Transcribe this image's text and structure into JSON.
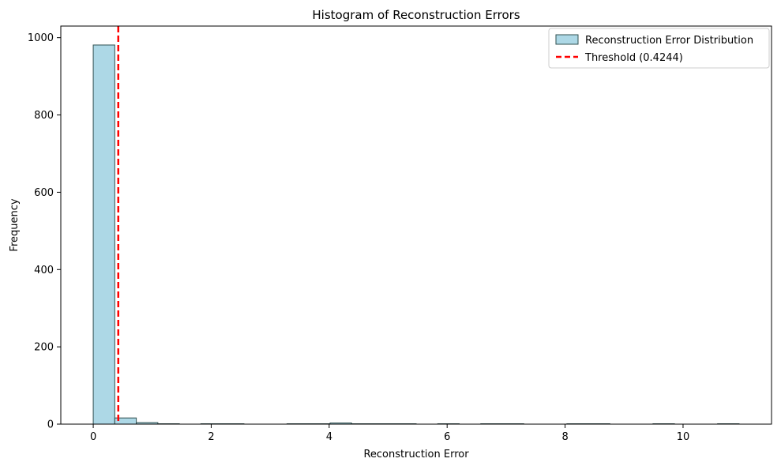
{
  "chart_data": {
    "type": "histogram",
    "title": "Histogram of Reconstruction Errors",
    "xlabel": "Reconstruction Error",
    "ylabel": "Frequency",
    "xlim": [
      -0.55,
      11.5
    ],
    "ylim": [
      0,
      1030
    ],
    "x_ticks": [
      0,
      2,
      4,
      6,
      8,
      10
    ],
    "y_ticks": [
      0,
      200,
      400,
      600,
      800,
      1000
    ],
    "bin_edges": [
      0.0,
      0.365,
      0.73,
      1.095,
      1.46,
      1.825,
      2.19,
      2.555,
      2.92,
      3.285,
      3.65,
      4.015,
      4.38,
      4.745,
      5.11,
      5.475,
      5.84,
      6.205,
      6.57,
      6.935,
      7.3,
      7.665,
      8.03,
      8.395,
      8.76,
      9.125,
      9.49,
      9.855,
      10.22,
      10.585,
      10.95
    ],
    "counts": [
      981,
      16,
      4,
      1,
      0,
      1,
      1,
      0,
      0,
      1,
      1,
      3,
      1,
      1,
      1,
      0,
      1,
      0,
      1,
      1,
      0,
      0,
      1,
      1,
      0,
      0,
      1,
      0,
      0,
      1
    ],
    "series": [
      {
        "name": "Reconstruction Error Distribution",
        "kind": "bars",
        "color": "#add8e6",
        "edgecolor": "#2f4f4f"
      },
      {
        "name": "Threshold (0.4244)",
        "kind": "vline",
        "x": 0.4244,
        "color": "#ff0000",
        "style": "dashed"
      }
    ],
    "legend": {
      "position": "top-right",
      "entries": [
        "Reconstruction Error Distribution",
        "Threshold (0.4244)"
      ]
    },
    "grid": false
  }
}
